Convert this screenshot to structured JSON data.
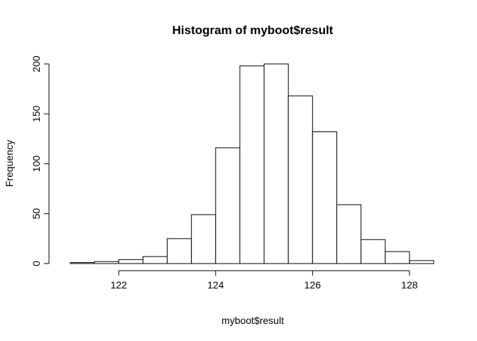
{
  "chart_data": {
    "type": "bar",
    "title": "Histogram of myboot$result",
    "xlabel": "myboot$result",
    "ylabel": "Frequency",
    "bin_edges": [
      121.0,
      121.5,
      122.0,
      122.5,
      123.0,
      123.5,
      124.0,
      124.5,
      125.0,
      125.5,
      126.0,
      126.5,
      127.0,
      127.5,
      128.0,
      128.5
    ],
    "values": [
      1,
      2,
      4,
      7,
      25,
      49,
      116,
      198,
      200,
      168,
      132,
      59,
      24,
      12,
      3
    ],
    "xlim": [
      121.0,
      128.5
    ],
    "ylim": [
      0,
      200
    ],
    "x_ticks": [
      122,
      124,
      126,
      128
    ],
    "y_ticks": [
      0,
      50,
      100,
      150,
      200
    ],
    "grid": false,
    "legend": "none"
  }
}
